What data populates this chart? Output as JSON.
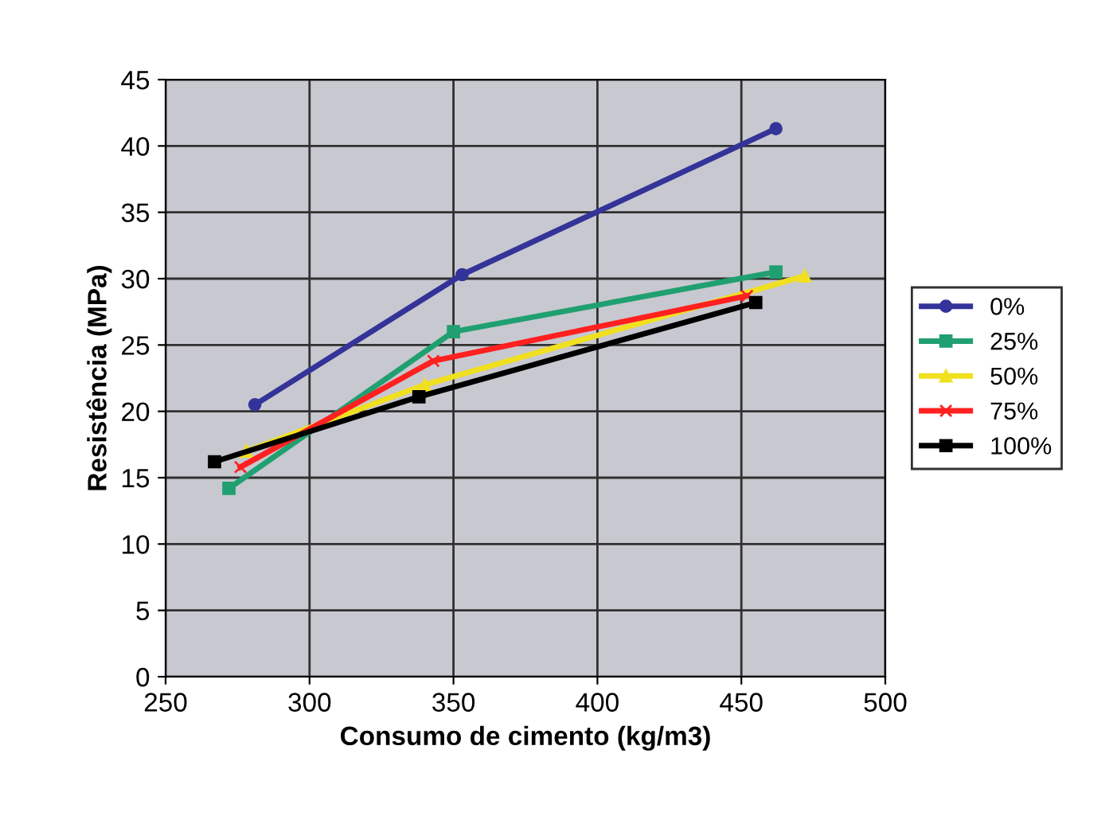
{
  "chart_data": {
    "type": "line",
    "xlabel": "Consumo de cimento (kg/m3)",
    "ylabel": "Resistência (MPa)",
    "xlim": [
      250,
      500
    ],
    "xticks": [
      250,
      300,
      350,
      400,
      450,
      500
    ],
    "ylim": [
      0,
      45
    ],
    "yticks": [
      0,
      5,
      10,
      15,
      20,
      25,
      30,
      35,
      40,
      45
    ],
    "grid": true,
    "legend": "right",
    "line_style": "solid",
    "series": [
      {
        "name": "0%",
        "color": "#333399",
        "marker": "circle",
        "x": [
          281,
          353,
          462
        ],
        "values": [
          20.5,
          30.3,
          41.3
        ]
      },
      {
        "name": "25%",
        "color": "#20a070",
        "marker": "square",
        "x": [
          272,
          350,
          462
        ],
        "values": [
          14.2,
          26,
          30.5
        ]
      },
      {
        "name": "50%",
        "color": "#f0e020",
        "marker": "triangle",
        "x": [
          278,
          340,
          472
        ],
        "values": [
          17,
          22,
          30.2
        ]
      },
      {
        "name": "75%",
        "color": "#ff2020",
        "marker": "cross",
        "x": [
          276,
          343,
          452
        ],
        "values": [
          15.8,
          23.8,
          28.7
        ]
      },
      {
        "name": "100%",
        "color": "#000000",
        "marker": "square",
        "x": [
          267,
          338,
          455
        ],
        "values": [
          16.2,
          21.1,
          28.2
        ]
      }
    ]
  }
}
